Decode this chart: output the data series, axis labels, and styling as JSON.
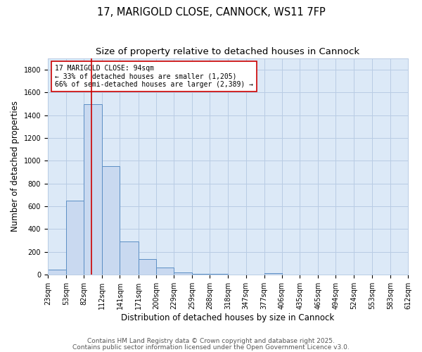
{
  "title_line1": "17, MARIGOLD CLOSE, CANNOCK, WS11 7FP",
  "title_line2": "Size of property relative to detached houses in Cannock",
  "xlabel": "Distribution of detached houses by size in Cannock",
  "ylabel": "Number of detached properties",
  "bins": [
    23,
    53,
    82,
    112,
    141,
    171,
    200,
    229,
    259,
    288,
    318,
    347,
    377,
    406,
    435,
    465,
    494,
    524,
    553,
    583,
    612
  ],
  "counts": [
    45,
    650,
    1500,
    950,
    290,
    135,
    60,
    20,
    8,
    4,
    2,
    2,
    10,
    2,
    0,
    0,
    0,
    0,
    0,
    0
  ],
  "bar_facecolor": "#c9d9f0",
  "bar_edgecolor": "#5b8ec4",
  "vline_x": 94,
  "vline_color": "#cc0000",
  "annotation_text_line1": "17 MARIGOLD CLOSE: 94sqm",
  "annotation_text_line2": "← 33% of detached houses are smaller (1,205)",
  "annotation_text_line3": "66% of semi-detached houses are larger (2,389) →",
  "annotation_fontsize": 7.0,
  "annotation_box_edgecolor": "#cc0000",
  "annotation_box_facecolor": "white",
  "grid_color": "#b8cce4",
  "bg_color": "#dce9f7",
  "ylim": [
    0,
    1900
  ],
  "yticks": [
    0,
    200,
    400,
    600,
    800,
    1000,
    1200,
    1400,
    1600,
    1800
  ],
  "footer_line1": "Contains HM Land Registry data © Crown copyright and database right 2025.",
  "footer_line2": "Contains public sector information licensed under the Open Government Licence v3.0.",
  "footer_fontsize": 6.5,
  "title_fontsize1": 10.5,
  "title_fontsize2": 9.5,
  "tick_fontsize": 7.0,
  "axis_label_fontsize": 8.5
}
